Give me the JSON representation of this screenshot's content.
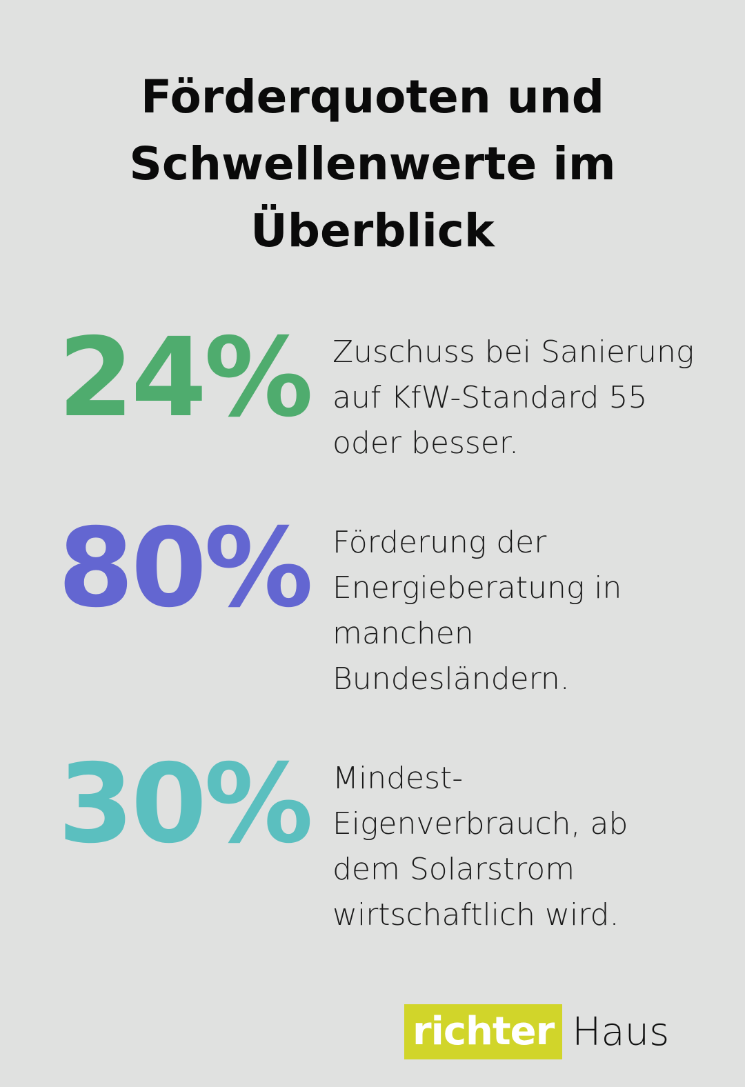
{
  "title": {
    "lines": [
      "Förderquoten und",
      "Schwellenwerte im",
      "Überblick"
    ]
  },
  "stats": [
    {
      "value": "24%",
      "color": "#4fac6e",
      "lines": [
        "Zuschuss bei Sanierung",
        "auf KfW-Standard 55",
        "oder besser."
      ]
    },
    {
      "value": "80%",
      "color": "#6366d1",
      "lines": [
        "Förderung der",
        "Energieberatung in",
        "manchen",
        "Bundesländern."
      ]
    },
    {
      "value": "30%",
      "color": "#5bbfbf",
      "lines": [
        "Mindest-",
        "Eigenverbrauch, ab",
        "dem Solarstrom",
        "wirtschaftlich wird."
      ]
    }
  ],
  "logo": {
    "part1": "richter",
    "part2": "Haus",
    "accent": "#d1d52a"
  }
}
